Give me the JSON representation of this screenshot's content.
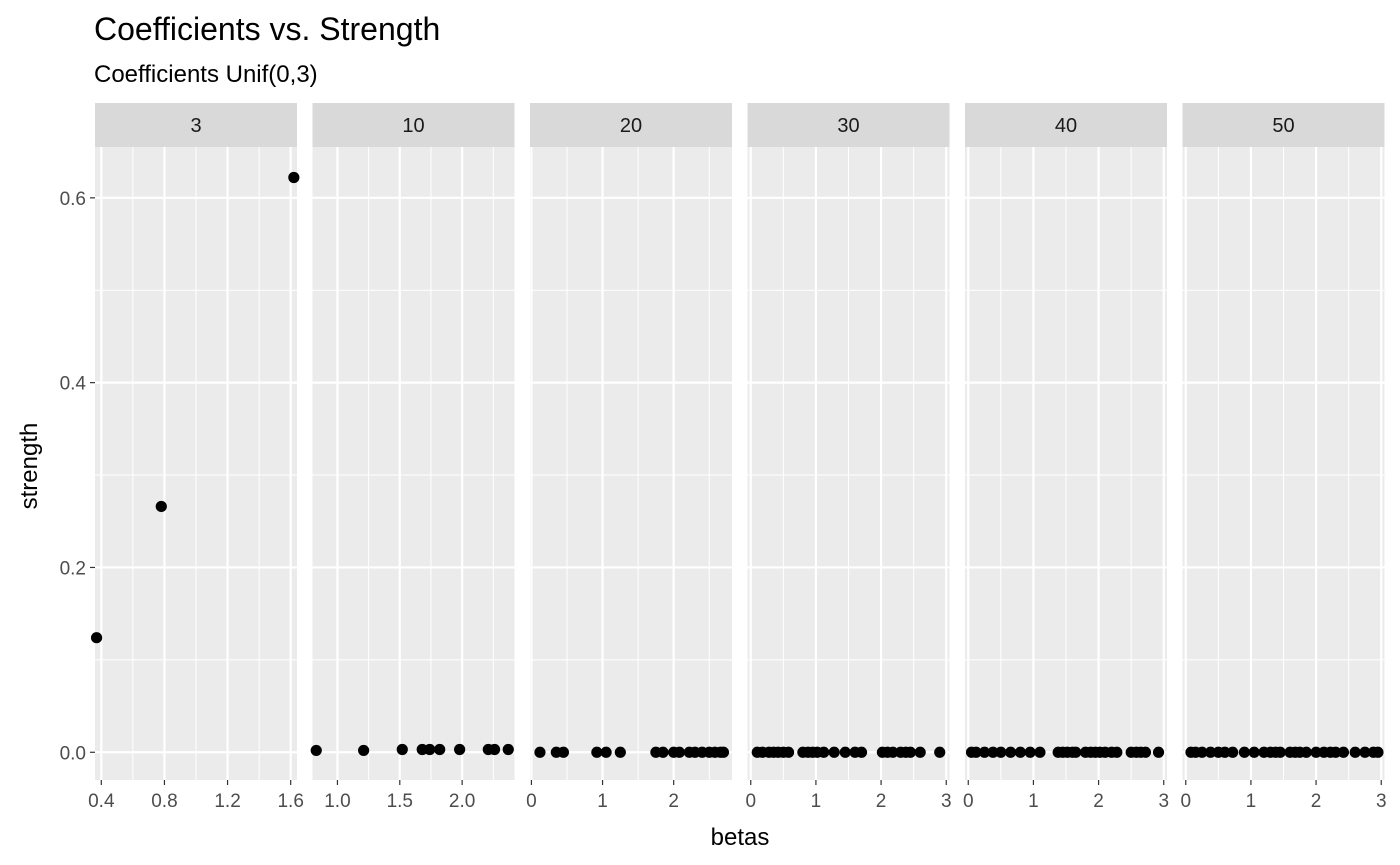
{
  "chart_data": {
    "type": "scatter",
    "title": "Coefficients vs. Strength",
    "subtitle": "Coefficients Unif(0,3)",
    "xlabel": "betas",
    "ylabel": "strength",
    "ylim": [
      -0.03,
      0.655
    ],
    "y_ticks": [
      "0.0",
      "0.2",
      "0.4",
      "0.6"
    ],
    "grid": true,
    "facet_by": "number of coefficients",
    "panels": [
      {
        "label": "3",
        "xlim": [
          0.36,
          1.64
        ],
        "x_ticks": [
          "0.4",
          "0.8",
          "1.2",
          "1.6"
        ],
        "points": [
          [
            0.37,
            0.124
          ],
          [
            0.78,
            0.266
          ],
          [
            1.62,
            0.622
          ]
        ]
      },
      {
        "label": "10",
        "xlim": [
          0.8,
          2.42
        ],
        "x_ticks": [
          "1.0",
          "1.5",
          "2.0"
        ],
        "points": [
          [
            0.83,
            0.002
          ],
          [
            1.21,
            0.002
          ],
          [
            1.52,
            0.003
          ],
          [
            1.68,
            0.003
          ],
          [
            1.74,
            0.003
          ],
          [
            1.82,
            0.003
          ],
          [
            1.98,
            0.003
          ],
          [
            2.21,
            0.003
          ],
          [
            2.26,
            0.003
          ],
          [
            2.37,
            0.003
          ]
        ]
      },
      {
        "label": "20",
        "xlim": [
          -0.02,
          2.82
        ],
        "x_ticks": [
          "0",
          "1",
          "2"
        ],
        "points": [
          [
            0.12,
            0.0
          ],
          [
            0.35,
            0.0
          ],
          [
            0.45,
            0.0
          ],
          [
            0.92,
            0.0
          ],
          [
            1.05,
            0.0
          ],
          [
            1.25,
            0.0
          ],
          [
            1.75,
            0.0
          ],
          [
            1.85,
            0.0
          ],
          [
            2.0,
            0.0
          ],
          [
            2.08,
            0.0
          ],
          [
            2.22,
            0.0
          ],
          [
            2.3,
            0.0
          ],
          [
            2.4,
            0.0
          ],
          [
            2.5,
            0.0
          ],
          [
            2.58,
            0.0
          ],
          [
            2.66,
            0.0
          ],
          [
            2.7,
            0.0
          ]
        ]
      },
      {
        "label": "30",
        "xlim": [
          -0.05,
          3.05
        ],
        "x_ticks": [
          "0",
          "1",
          "2",
          "3"
        ],
        "points": [
          [
            0.1,
            0.0
          ],
          [
            0.18,
            0.0
          ],
          [
            0.28,
            0.0
          ],
          [
            0.35,
            0.0
          ],
          [
            0.42,
            0.0
          ],
          [
            0.5,
            0.0
          ],
          [
            0.58,
            0.0
          ],
          [
            0.8,
            0.0
          ],
          [
            0.88,
            0.0
          ],
          [
            0.95,
            0.0
          ],
          [
            1.02,
            0.0
          ],
          [
            1.12,
            0.0
          ],
          [
            1.28,
            0.0
          ],
          [
            1.45,
            0.0
          ],
          [
            1.6,
            0.0
          ],
          [
            1.7,
            0.0
          ],
          [
            2.02,
            0.0
          ],
          [
            2.1,
            0.0
          ],
          [
            2.18,
            0.0
          ],
          [
            2.3,
            0.0
          ],
          [
            2.38,
            0.0
          ],
          [
            2.45,
            0.0
          ],
          [
            2.6,
            0.0
          ],
          [
            2.9,
            0.0
          ]
        ]
      },
      {
        "label": "40",
        "xlim": [
          -0.05,
          3.05
        ],
        "x_ticks": [
          "0",
          "1",
          "2",
          "3"
        ],
        "points": [
          [
            0.05,
            0.0
          ],
          [
            0.12,
            0.0
          ],
          [
            0.25,
            0.0
          ],
          [
            0.38,
            0.0
          ],
          [
            0.5,
            0.0
          ],
          [
            0.65,
            0.0
          ],
          [
            0.8,
            0.0
          ],
          [
            0.95,
            0.0
          ],
          [
            1.1,
            0.0
          ],
          [
            1.38,
            0.0
          ],
          [
            1.45,
            0.0
          ],
          [
            1.52,
            0.0
          ],
          [
            1.6,
            0.0
          ],
          [
            1.65,
            0.0
          ],
          [
            1.8,
            0.0
          ],
          [
            1.88,
            0.0
          ],
          [
            1.95,
            0.0
          ],
          [
            2.02,
            0.0
          ],
          [
            2.1,
            0.0
          ],
          [
            2.2,
            0.0
          ],
          [
            2.28,
            0.0
          ],
          [
            2.5,
            0.0
          ],
          [
            2.58,
            0.0
          ],
          [
            2.65,
            0.0
          ],
          [
            2.72,
            0.0
          ],
          [
            2.92,
            0.0
          ]
        ]
      },
      {
        "label": "50",
        "xlim": [
          -0.05,
          3.05
        ],
        "x_ticks": [
          "0",
          "1",
          "2",
          "3"
        ],
        "points": [
          [
            0.08,
            0.0
          ],
          [
            0.15,
            0.0
          ],
          [
            0.25,
            0.0
          ],
          [
            0.38,
            0.0
          ],
          [
            0.5,
            0.0
          ],
          [
            0.6,
            0.0
          ],
          [
            0.72,
            0.0
          ],
          [
            0.9,
            0.0
          ],
          [
            1.05,
            0.0
          ],
          [
            1.2,
            0.0
          ],
          [
            1.3,
            0.0
          ],
          [
            1.38,
            0.0
          ],
          [
            1.45,
            0.0
          ],
          [
            1.6,
            0.0
          ],
          [
            1.68,
            0.0
          ],
          [
            1.75,
            0.0
          ],
          [
            1.85,
            0.0
          ],
          [
            2.0,
            0.0
          ],
          [
            2.12,
            0.0
          ],
          [
            2.22,
            0.0
          ],
          [
            2.3,
            0.0
          ],
          [
            2.42,
            0.0
          ],
          [
            2.6,
            0.0
          ],
          [
            2.75,
            0.0
          ],
          [
            2.88,
            0.0
          ],
          [
            2.95,
            0.0
          ]
        ]
      }
    ]
  }
}
